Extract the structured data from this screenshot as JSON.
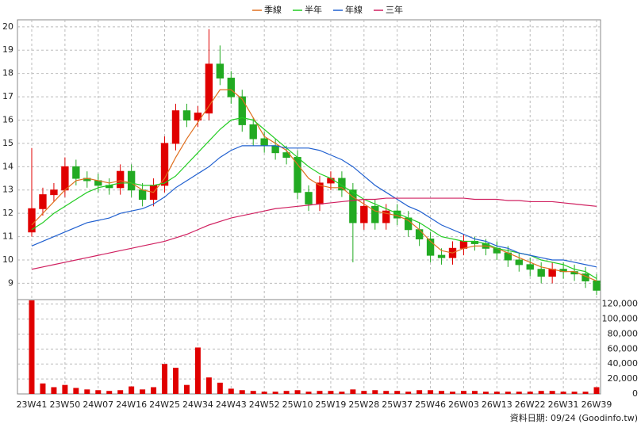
{
  "chart_data": [
    {
      "type": "candlestick",
      "categories": [
        "23W41",
        null,
        null,
        "23W50",
        null,
        null,
        "24W07",
        null,
        null,
        "24W16",
        null,
        null,
        "24W25",
        null,
        null,
        "24W34",
        null,
        null,
        "24W43",
        null,
        null,
        "24W52",
        null,
        null,
        "25W10",
        null,
        null,
        "25W19",
        null,
        null,
        "25W28",
        null,
        null,
        "25W37",
        null,
        null,
        "25W46",
        null,
        null,
        "26W03",
        null,
        null,
        "26W13",
        null,
        null,
        "26W22",
        null,
        null,
        "26W31",
        null,
        null,
        "26W39"
      ],
      "open": [
        11.2,
        12.2,
        12.8,
        13.0,
        14.0,
        13.5,
        13.4,
        13.2,
        13.1,
        13.8,
        13.0,
        12.6,
        13.2,
        15.0,
        16.4,
        16.0,
        16.3,
        18.4,
        17.8,
        17.0,
        15.8,
        15.2,
        14.9,
        14.6,
        14.4,
        12.9,
        12.4,
        13.3,
        13.5,
        13.0,
        11.6,
        12.3,
        11.6,
        12.1,
        11.8,
        11.3,
        10.9,
        10.2,
        10.1,
        10.5,
        10.8,
        10.7,
        10.5,
        10.3,
        10.0,
        9.8,
        9.6,
        9.3,
        9.6,
        9.5,
        9.4,
        9.1
      ],
      "high": [
        14.8,
        13.1,
        13.3,
        14.4,
        14.3,
        13.8,
        13.7,
        13.5,
        14.1,
        14.1,
        13.3,
        13.5,
        15.3,
        16.7,
        16.7,
        16.6,
        19.9,
        19.2,
        18.1,
        17.3,
        16.1,
        15.5,
        15.2,
        14.9,
        14.7,
        13.2,
        13.6,
        13.8,
        13.8,
        13.3,
        12.6,
        12.6,
        12.4,
        12.4,
        12.1,
        11.6,
        11.2,
        10.5,
        10.8,
        11.1,
        11.0,
        10.9,
        10.8,
        10.6,
        10.3,
        10.1,
        9.9,
        9.9,
        9.9,
        9.8,
        9.7,
        9.4
      ],
      "low": [
        11.0,
        11.9,
        12.5,
        12.7,
        13.2,
        13.1,
        12.9,
        12.8,
        12.8,
        12.7,
        12.3,
        12.3,
        12.9,
        14.7,
        15.7,
        15.7,
        16.0,
        17.5,
        16.7,
        15.5,
        14.9,
        14.6,
        14.3,
        14.1,
        12.6,
        12.1,
        12.1,
        13.0,
        12.7,
        9.9,
        11.3,
        11.3,
        11.3,
        11.5,
        11.0,
        10.6,
        9.9,
        9.8,
        9.8,
        10.2,
        10.4,
        10.2,
        10.0,
        9.7,
        9.5,
        9.3,
        9.0,
        9.0,
        9.2,
        9.1,
        8.8,
        8.5
      ],
      "close": [
        12.2,
        12.8,
        13.0,
        14.0,
        13.5,
        13.4,
        13.2,
        13.1,
        13.8,
        13.0,
        12.6,
        13.2,
        15.0,
        16.4,
        16.0,
        16.3,
        18.4,
        17.8,
        17.0,
        15.8,
        15.2,
        14.9,
        14.6,
        14.4,
        12.9,
        12.4,
        13.3,
        13.5,
        13.0,
        11.6,
        12.3,
        11.6,
        12.1,
        11.8,
        11.3,
        10.9,
        10.2,
        10.1,
        10.5,
        10.8,
        10.7,
        10.5,
        10.3,
        10.0,
        9.8,
        9.6,
        9.3,
        9.6,
        9.5,
        9.4,
        9.1,
        8.7
      ],
      "up_color": "#e00000",
      "down_color": "#22aa22",
      "series": [
        {
          "name": "季線",
          "color": "#e07020",
          "values": [
            11.5,
            12.0,
            12.5,
            13.0,
            13.4,
            13.5,
            13.4,
            13.3,
            13.4,
            13.3,
            13.0,
            12.9,
            13.5,
            14.4,
            15.2,
            15.9,
            16.6,
            17.3,
            17.3,
            16.9,
            16.1,
            15.3,
            15.0,
            14.7,
            14.1,
            13.5,
            13.2,
            13.1,
            13.1,
            12.7,
            12.4,
            12.1,
            12.0,
            11.9,
            11.7,
            11.3,
            10.8,
            10.4,
            10.3,
            10.5,
            10.6,
            10.6,
            10.5,
            10.3,
            10.1,
            9.9,
            9.7,
            9.6,
            9.5,
            9.5,
            9.3,
            9.1
          ]
        },
        {
          "name": "半年",
          "color": "#22cc22",
          "values": [
            11.3,
            11.6,
            12.0,
            12.3,
            12.6,
            12.9,
            13.1,
            13.2,
            13.3,
            13.3,
            13.2,
            13.2,
            13.3,
            13.6,
            14.1,
            14.6,
            15.1,
            15.6,
            16.0,
            16.1,
            16.0,
            15.6,
            15.2,
            14.8,
            14.4,
            14.0,
            13.7,
            13.5,
            13.2,
            12.9,
            12.6,
            12.4,
            12.2,
            12.0,
            11.8,
            11.6,
            11.3,
            11.0,
            10.9,
            10.8,
            10.8,
            10.7,
            10.5,
            10.4,
            10.3,
            10.2,
            10.0,
            9.9,
            9.8,
            9.6,
            9.5,
            9.2
          ]
        },
        {
          "name": "年線",
          "color": "#2060d0",
          "values": [
            10.6,
            10.8,
            11.0,
            11.2,
            11.4,
            11.6,
            11.7,
            11.8,
            12.0,
            12.1,
            12.2,
            12.4,
            12.7,
            13.1,
            13.4,
            13.7,
            14.0,
            14.4,
            14.7,
            14.9,
            14.9,
            14.9,
            14.9,
            14.8,
            14.8,
            14.8,
            14.7,
            14.5,
            14.3,
            14.0,
            13.6,
            13.2,
            12.9,
            12.6,
            12.3,
            12.1,
            11.8,
            11.5,
            11.3,
            11.1,
            10.9,
            10.8,
            10.6,
            10.5,
            10.3,
            10.2,
            10.1,
            10.0,
            10.0,
            9.9,
            9.8,
            9.7
          ]
        },
        {
          "name": "三年",
          "color": "#d02060",
          "values": [
            9.6,
            9.7,
            9.8,
            9.9,
            10.0,
            10.1,
            10.2,
            10.3,
            10.4,
            10.5,
            10.6,
            10.7,
            10.8,
            10.95,
            11.1,
            11.3,
            11.5,
            11.65,
            11.8,
            11.9,
            12.0,
            12.1,
            12.2,
            12.25,
            12.3,
            12.35,
            12.4,
            12.45,
            12.5,
            12.55,
            12.6,
            12.6,
            12.65,
            12.65,
            12.65,
            12.65,
            12.65,
            12.65,
            12.65,
            12.65,
            12.6,
            12.6,
            12.6,
            12.55,
            12.55,
            12.5,
            12.5,
            12.5,
            12.45,
            12.4,
            12.35,
            12.3
          ]
        }
      ],
      "ylim": [
        8.3,
        20.3
      ],
      "yticks": [
        9,
        10,
        11,
        12,
        13,
        14,
        15,
        16,
        17,
        18,
        19,
        20
      ],
      "grid": true
    },
    {
      "type": "bar",
      "color": "#e00000",
      "values": [
        125000,
        14000,
        9000,
        12000,
        8000,
        6000,
        5000,
        4000,
        5000,
        10000,
        6000,
        9000,
        40000,
        35000,
        12000,
        62000,
        22000,
        15000,
        7000,
        5000,
        4000,
        3000,
        3000,
        4000,
        5000,
        3000,
        4000,
        4000,
        3000,
        6000,
        4000,
        5000,
        4000,
        4000,
        3000,
        5000,
        5000,
        4000,
        3000,
        4000,
        4000,
        3000,
        3000,
        3000,
        3000,
        3000,
        4000,
        4000,
        3000,
        3000,
        3000,
        9000
      ],
      "ylim": [
        0,
        126000
      ],
      "yticks": [
        {
          "value": 0,
          "label": "0"
        },
        {
          "value": 20000,
          "label": "20,000"
        },
        {
          "value": 40000,
          "label": "40,000"
        },
        {
          "value": 60000,
          "label": "60,000"
        },
        {
          "value": 80000,
          "label": "80,000"
        },
        {
          "value": 100000,
          "label": "100,000"
        },
        {
          "value": 120000,
          "label": "120,000"
        }
      ],
      "grid": true,
      "note": "資料日期: 09/24  (Goodinfo.tw)"
    }
  ]
}
